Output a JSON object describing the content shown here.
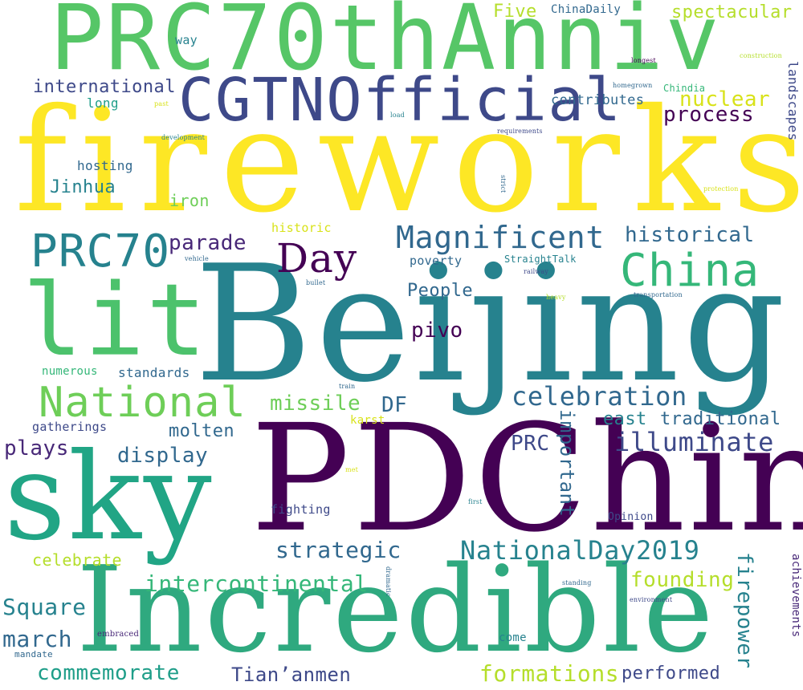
{
  "words": {
    "fireworks": "fireworks",
    "beijing": "Beijing",
    "pdchina": "PDChina",
    "incredible": "Incredible",
    "prc70thanniv": "PRC70thAnniv",
    "sky": "sky",
    "lit": "lit",
    "cgtnofficial": "CGTNOfficial",
    "prc70": "PRC70",
    "national": "National",
    "china": "China",
    "magnificent": "Magnificent",
    "day": "Day",
    "nationalday2019": "NationalDay2019",
    "celebration": "celebration",
    "illuminate": "illuminate",
    "intercontinental": "intercontinental",
    "commemorate": "commemorate",
    "formations": "formations",
    "square": "Square",
    "march": "march",
    "tiananmen": "Tian’anmen",
    "strategic": "strategic",
    "founding": "founding",
    "firepower": "firepower",
    "historical": "historical",
    "nuclear": "nuclear",
    "process": "process",
    "missile": "missile",
    "df": "DF",
    "parade": "parade",
    "display": "display",
    "plays": "plays",
    "molten": "molten",
    "pivo": "pivo",
    "people": "People",
    "prc": "PRC",
    "important": "important",
    "east": "east",
    "traditional": "traditional",
    "performed": "performed",
    "international": "international",
    "five": "Five",
    "spectacular": "spectacular",
    "contributes": "contributes",
    "jinhua": "Jinhua",
    "celebrate": "celebrate",
    "long": "long",
    "hosting": "hosting",
    "iron": "iron",
    "historic": "historic",
    "way": "way",
    "chinadaily": "ChinaDaily",
    "landscapes": "landscapes",
    "achievements": "achievements",
    "poverty": "poverty",
    "standards": "standards",
    "gatherings": "gatherings",
    "fighting": "fighting",
    "come": "come",
    "opinion": "Opinion",
    "numerous": "numerous",
    "karst": "karst",
    "straighttalk": "StraightTalk",
    "chindia": "Chindia",
    "embraced": "embraced",
    "mandate": "mandate",
    "longest": "longest",
    "construction": "construction",
    "homegrown": "homegrown",
    "past": "past",
    "load": "load",
    "requirements": "requirements",
    "development": "development",
    "strict": "strict",
    "protection": "protection",
    "vehicle": "vehicle",
    "bullet": "bullet",
    "railway": "railway",
    "heavy": "heavy",
    "transportation": "transportation",
    "train": "train",
    "met": "met",
    "first": "first",
    "dramatic": "dramatic",
    "standing": "standing",
    "environment": "environment"
  },
  "palette": {
    "yellow": "#fde725",
    "lime": "#b5de2b",
    "green": "#6ece58",
    "teal_green": "#35b779",
    "sea": "#1f9e89",
    "teal": "#26828e",
    "steel": "#31688e",
    "indigo": "#3e4989",
    "violet": "#482878",
    "purple": "#440154"
  }
}
